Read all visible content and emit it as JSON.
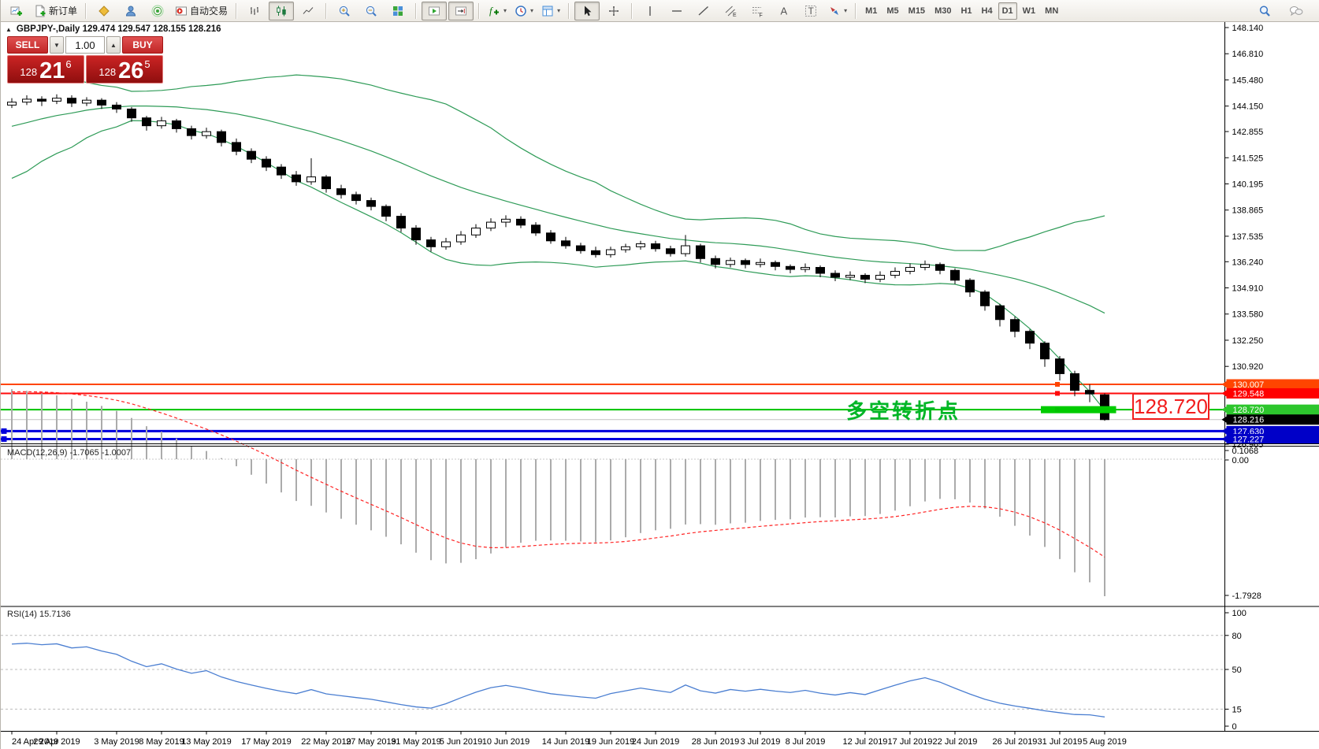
{
  "toolbar": {
    "new_order": "新订单",
    "auto_trading": "自动交易",
    "timeframes": [
      "M1",
      "M5",
      "M15",
      "M30",
      "H1",
      "H4",
      "D1",
      "W1",
      "MN"
    ],
    "active_timeframe": "D1",
    "channel_letter": "E",
    "fibo_letter": "F",
    "text_letter": "A",
    "label_letter": "T",
    "indicator_f": "f"
  },
  "symbol_bar": {
    "collapse_icon": "▲",
    "text": "GBPJPY-,Daily  129.474 129.547 128.155 128.216"
  },
  "trade_panel": {
    "sell": "SELL",
    "buy": "BUY",
    "volume": "1.00",
    "sell_price_prefix": "128",
    "sell_price_main": "21",
    "sell_price_sup": "6",
    "buy_price_prefix": "128",
    "buy_price_main": "26",
    "buy_price_sup": "5"
  },
  "indicators": {
    "macd_label": "MACD(12,26,9) -1.7065 -1.0007",
    "rsi_label": "RSI(14) 15.7136"
  },
  "annotation": {
    "text": "多空转折点",
    "tag": "128.720"
  },
  "chart_data": {
    "type": "candlestick",
    "symbol": "GBPJPY-",
    "timeframe": "Daily",
    "ohlc_display": {
      "open": "129.474",
      "high": "129.547",
      "low": "128.155",
      "close": "128.216"
    },
    "y_axis_ticks": [
      "148.140",
      "146.810",
      "145.480",
      "144.150",
      "142.855",
      "141.525",
      "140.195",
      "138.865",
      "137.535",
      "136.240",
      "134.910",
      "133.580",
      "132.250",
      "130.920",
      "126.965"
    ],
    "price_scale_labels": [
      {
        "text": "130.007",
        "price": 130.007,
        "bg": "#FF4500"
      },
      {
        "text": "129.548",
        "price": 129.548,
        "bg": "#FF0000"
      },
      {
        "text": "128.720",
        "price": 128.72,
        "bg": "#2DC62D"
      },
      {
        "text": "128.216",
        "price": 128.216,
        "bg": "#000000"
      },
      {
        "text": "127.630",
        "price": 127.63,
        "bg": "#0000C8"
      },
      {
        "text": "127.227",
        "price": 127.227,
        "bg": "#0000C8"
      }
    ],
    "hlines": [
      {
        "price": 130.007,
        "color": "#FF4500",
        "w": 2,
        "handle": true
      },
      {
        "price": 129.548,
        "color": "#FF0A0A",
        "w": 2,
        "handle": true
      },
      {
        "price": 128.72,
        "color": "#00C300",
        "w": 2,
        "handle": true
      },
      {
        "price": 128.216,
        "color": "#C0C0C0",
        "w": 1,
        "handle": false
      },
      {
        "price": 127.63,
        "color": "#0000DC",
        "w": 3,
        "left_handle": true
      },
      {
        "price": 127.227,
        "color": "#0000DC",
        "w": 3,
        "left_handle": true
      }
    ],
    "green_segment": {
      "price": 128.72,
      "from_index": 69,
      "to_index": 73.5
    },
    "macd_axis": [
      "0.1068",
      "0.00",
      "-1.7928"
    ],
    "rsi_axis": [
      {
        "v": 100,
        "t": "100"
      },
      {
        "v": 80,
        "t": "80"
      },
      {
        "v": 50,
        "t": "50"
      },
      {
        "v": 15,
        "t": "15"
      },
      {
        "v": 0,
        "t": "0"
      }
    ],
    "rsi_levels": [
      80,
      50,
      15
    ],
    "x_axis_dates": [
      {
        "label": "24 Apr 2019",
        "i": 0
      },
      {
        "label": "29 Apr 2019",
        "i": 3
      },
      {
        "label": "3 May 2019",
        "i": 7
      },
      {
        "label": "8 May 2019",
        "i": 10
      },
      {
        "label": "13 May 2019",
        "i": 13
      },
      {
        "label": "17 May 2019",
        "i": 17
      },
      {
        "label": "22 May 2019",
        "i": 21
      },
      {
        "label": "27 May 2019",
        "i": 24
      },
      {
        "label": "31 May 2019",
        "i": 27
      },
      {
        "label": "5 Jun 2019",
        "i": 30
      },
      {
        "label": "10 Jun 2019",
        "i": 33
      },
      {
        "label": "14 Jun 2019",
        "i": 37
      },
      {
        "label": "19 Jun 2019",
        "i": 40
      },
      {
        "label": "24 Jun 2019",
        "i": 43
      },
      {
        "label": "28 Jun 2019",
        "i": 47
      },
      {
        "label": "3 Jul 2019",
        "i": 50
      },
      {
        "label": "8 Jul 2019",
        "i": 53
      },
      {
        "label": "12 Jul 2019",
        "i": 57
      },
      {
        "label": "17 Jul 2019",
        "i": 60
      },
      {
        "label": "22 Jul 2019",
        "i": 63
      },
      {
        "label": "26 Jul 2019",
        "i": 67
      },
      {
        "label": "31 Jul 2019",
        "i": 70
      },
      {
        "label": "5 Aug 2019",
        "i": 73
      }
    ],
    "pre_closes": [
      140.2,
      140.8,
      140.5,
      141.2,
      141.8,
      141.5,
      142.2,
      142.8,
      142.5,
      143.2,
      143.8,
      143.5,
      144.2,
      144.0,
      144.4,
      144.1,
      144.5,
      144.3,
      144.6,
      144.2
    ],
    "candles": [
      [
        144.2,
        144.55,
        144.05,
        144.35
      ],
      [
        144.35,
        144.7,
        144.2,
        144.5
      ],
      [
        144.5,
        144.65,
        144.15,
        144.4
      ],
      [
        144.4,
        144.75,
        144.25,
        144.55
      ],
      [
        144.55,
        144.7,
        144.1,
        144.3
      ],
      [
        144.3,
        144.6,
        144.15,
        144.45
      ],
      [
        144.45,
        144.55,
        144.0,
        144.2
      ],
      [
        144.2,
        144.35,
        143.8,
        144.0
      ],
      [
        144.0,
        144.1,
        143.35,
        143.55
      ],
      [
        143.55,
        143.65,
        142.9,
        143.15
      ],
      [
        143.15,
        143.6,
        143.0,
        143.4
      ],
      [
        143.4,
        143.5,
        142.8,
        143.0
      ],
      [
        143.0,
        143.15,
        142.45,
        142.65
      ],
      [
        142.65,
        143.05,
        142.5,
        142.85
      ],
      [
        142.85,
        142.95,
        142.1,
        142.3
      ],
      [
        142.3,
        142.5,
        141.65,
        141.85
      ],
      [
        141.85,
        142.0,
        141.25,
        141.45
      ],
      [
        141.45,
        141.6,
        140.85,
        141.05
      ],
      [
        141.05,
        141.2,
        140.45,
        140.65
      ],
      [
        140.65,
        140.85,
        140.1,
        140.3
      ],
      [
        140.3,
        141.5,
        140.15,
        140.55
      ],
      [
        140.55,
        140.65,
        139.75,
        139.95
      ],
      [
        139.95,
        140.15,
        139.45,
        139.65
      ],
      [
        139.65,
        139.8,
        139.15,
        139.35
      ],
      [
        139.35,
        139.5,
        138.85,
        139.05
      ],
      [
        139.05,
        139.15,
        138.3,
        138.55
      ],
      [
        138.55,
        138.7,
        137.75,
        137.95
      ],
      [
        137.95,
        138.1,
        137.1,
        137.35
      ],
      [
        137.35,
        137.5,
        136.75,
        137.0
      ],
      [
        137.0,
        137.45,
        136.85,
        137.25
      ],
      [
        137.25,
        137.8,
        137.1,
        137.6
      ],
      [
        137.6,
        138.15,
        137.45,
        137.95
      ],
      [
        137.95,
        138.45,
        137.8,
        138.25
      ],
      [
        138.25,
        138.6,
        138.0,
        138.4
      ],
      [
        138.4,
        138.55,
        137.95,
        138.1
      ],
      [
        138.1,
        138.25,
        137.55,
        137.7
      ],
      [
        137.7,
        137.85,
        137.15,
        137.3
      ],
      [
        137.3,
        137.5,
        136.9,
        137.05
      ],
      [
        137.05,
        137.2,
        136.65,
        136.8
      ],
      [
        136.8,
        137.0,
        136.45,
        136.6
      ],
      [
        136.6,
        137.0,
        136.45,
        136.85
      ],
      [
        136.85,
        137.15,
        136.7,
        137.0
      ],
      [
        137.0,
        137.3,
        136.85,
        137.15
      ],
      [
        137.15,
        137.3,
        136.75,
        136.9
      ],
      [
        136.9,
        137.05,
        136.5,
        136.65
      ],
      [
        136.65,
        137.6,
        136.5,
        137.05
      ],
      [
        137.05,
        137.15,
        136.2,
        136.4
      ],
      [
        136.4,
        136.55,
        135.9,
        136.1
      ],
      [
        136.1,
        136.45,
        135.95,
        136.3
      ],
      [
        136.3,
        136.4,
        135.9,
        136.1
      ],
      [
        136.1,
        136.4,
        135.95,
        136.2
      ],
      [
        136.2,
        136.3,
        135.8,
        136.0
      ],
      [
        136.0,
        136.1,
        135.65,
        135.85
      ],
      [
        135.85,
        136.15,
        135.7,
        135.95
      ],
      [
        135.95,
        136.05,
        135.45,
        135.65
      ],
      [
        135.65,
        135.8,
        135.25,
        135.45
      ],
      [
        135.45,
        135.75,
        135.3,
        135.55
      ],
      [
        135.55,
        135.65,
        135.15,
        135.35
      ],
      [
        135.35,
        135.75,
        135.2,
        135.55
      ],
      [
        135.55,
        135.95,
        135.4,
        135.75
      ],
      [
        135.75,
        136.15,
        135.6,
        135.95
      ],
      [
        135.95,
        136.3,
        135.8,
        136.1
      ],
      [
        136.1,
        136.2,
        135.6,
        135.8
      ],
      [
        135.8,
        135.9,
        135.1,
        135.3
      ],
      [
        135.3,
        135.4,
        134.45,
        134.7
      ],
      [
        134.7,
        134.8,
        133.75,
        134.0
      ],
      [
        134.0,
        134.1,
        132.95,
        133.3
      ],
      [
        133.3,
        133.45,
        132.4,
        132.7
      ],
      [
        132.7,
        132.8,
        131.8,
        132.1
      ],
      [
        132.1,
        132.2,
        130.9,
        131.3
      ],
      [
        131.3,
        131.45,
        130.2,
        130.55
      ],
      [
        130.55,
        130.7,
        129.4,
        129.7
      ],
      [
        129.7,
        130.0,
        129.1,
        129.52
      ],
      [
        129.474,
        129.547,
        128.155,
        128.216
      ]
    ]
  }
}
